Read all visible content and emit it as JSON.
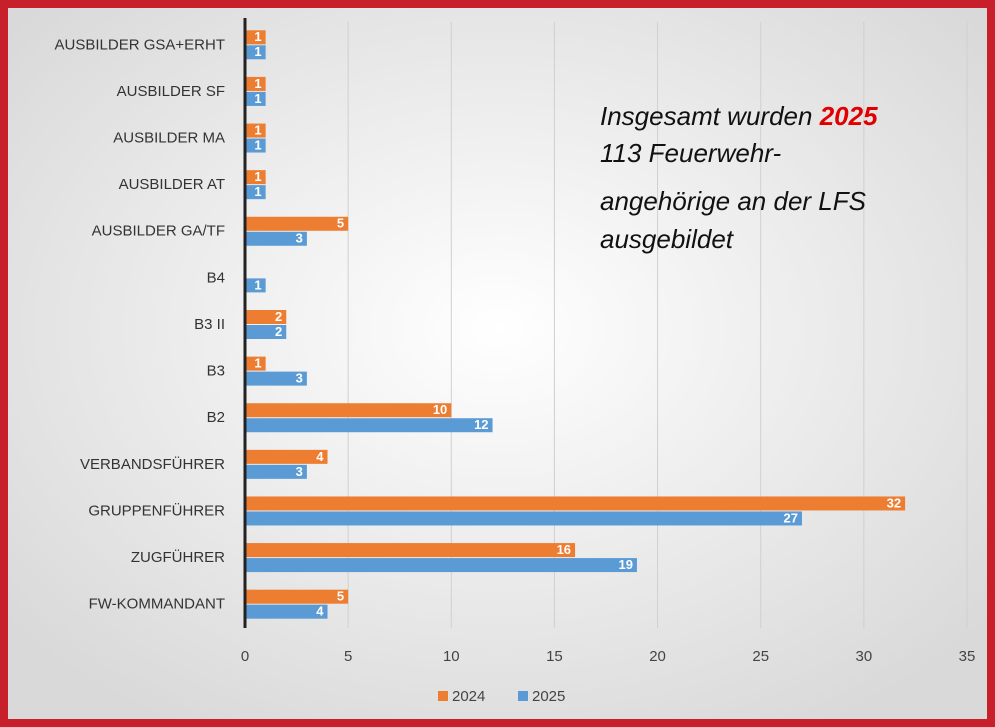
{
  "chart_data": {
    "type": "bar",
    "orientation": "horizontal",
    "categories": [
      "AUSBILDER GSA+ERHT",
      "AUSBILDER SF",
      "AUSBILDER MA",
      "AUSBILDER AT",
      "AUSBILDER GA/TF",
      "B4",
      "B3 II",
      "B3",
      "B2",
      "VERBANDSFÜHRER",
      "GRUPPENFÜHRER",
      "ZUGFÜHRER",
      "FW-KOMMANDANT"
    ],
    "series": [
      {
        "name": "2024",
        "color": "#ed7d31",
        "values": [
          1,
          1,
          1,
          1,
          5,
          null,
          2,
          1,
          10,
          4,
          32,
          16,
          5
        ]
      },
      {
        "name": "2025",
        "color": "#5b9bd5",
        "values": [
          1,
          1,
          1,
          1,
          3,
          1,
          2,
          3,
          12,
          3,
          27,
          19,
          4
        ]
      }
    ],
    "xlim": [
      0,
      35
    ],
    "xticks": [
      0,
      5,
      10,
      15,
      20,
      25,
      30,
      35
    ],
    "grid": true,
    "legend": "bottom",
    "annotation": [
      "Insgesamt wurden",
      "2025",
      "113 Feuerwehr-",
      "angehörige an der LFS",
      "ausgebildet"
    ],
    "annotation_highlight_color": "#e00000"
  }
}
